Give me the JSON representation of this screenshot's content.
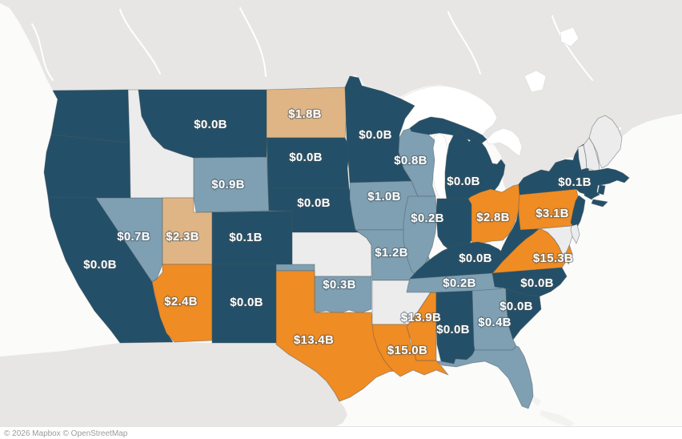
{
  "map": {
    "attribution": "© 2026 Mapbox © OpenStreetMap",
    "colors": {
      "dark": "#235068",
      "medium": "#7fa0b2",
      "tan": "#e0b585",
      "orange": "#ef8c23",
      "no_data": "#ececec",
      "water": "#fbfbfa",
      "foreign_land": "#e7e6e4",
      "lake": "#ffffff",
      "shallow_water": "#f2f2f1",
      "label_text": "#ffffff"
    },
    "states": [
      {
        "id": "WA",
        "category": "dark",
        "value": null
      },
      {
        "id": "OR",
        "category": "dark",
        "value": null
      },
      {
        "id": "CA",
        "category": "dark",
        "value": "$0.0B"
      },
      {
        "id": "NV",
        "category": "medium",
        "value": "$0.7B"
      },
      {
        "id": "ID",
        "category": "no_data",
        "value": null
      },
      {
        "id": "UT",
        "category": "tan",
        "value": "$2.3B"
      },
      {
        "id": "AZ",
        "category": "orange",
        "value": "$2.4B"
      },
      {
        "id": "MT",
        "category": "dark",
        "value": "$0.0B"
      },
      {
        "id": "WY",
        "category": "medium",
        "value": "$0.9B"
      },
      {
        "id": "CO",
        "category": "dark",
        "value": "$0.1B"
      },
      {
        "id": "NM",
        "category": "dark",
        "value": "$0.0B"
      },
      {
        "id": "ND",
        "category": "tan",
        "value": "$1.8B"
      },
      {
        "id": "SD",
        "category": "dark",
        "value": "$0.0B"
      },
      {
        "id": "NE",
        "category": "dark",
        "value": "$0.0B"
      },
      {
        "id": "KS",
        "category": "no_data",
        "value": null
      },
      {
        "id": "OK",
        "category": "medium",
        "value": "$0.3B"
      },
      {
        "id": "TX",
        "category": "orange",
        "value": "$13.4B"
      },
      {
        "id": "MN",
        "category": "dark",
        "value": "$0.0B"
      },
      {
        "id": "IA",
        "category": "medium",
        "value": "$1.0B"
      },
      {
        "id": "MO",
        "category": "medium",
        "value": "$1.2B"
      },
      {
        "id": "AR",
        "category": "no_data",
        "value": null
      },
      {
        "id": "LA",
        "category": "orange",
        "value": "$15.0B"
      },
      {
        "id": "WI",
        "category": "medium",
        "value": "$0.8B"
      },
      {
        "id": "IL",
        "category": "medium",
        "value": "$0.2B"
      },
      {
        "id": "MS",
        "category": "orange",
        "value": "$13.9B"
      },
      {
        "id": "MI",
        "category": "dark",
        "value": "$0.0B"
      },
      {
        "id": "IN",
        "category": "dark",
        "value": null
      },
      {
        "id": "OH",
        "category": "orange",
        "value": "$2.8B"
      },
      {
        "id": "KY",
        "category": "dark",
        "value": "$0.0B"
      },
      {
        "id": "TN",
        "category": "medium",
        "value": "$0.2B"
      },
      {
        "id": "AL",
        "category": "dark",
        "value": "$0.0B"
      },
      {
        "id": "GA",
        "category": "medium",
        "value": "$0.4B"
      },
      {
        "id": "FL",
        "category": "medium",
        "value": null
      },
      {
        "id": "SC",
        "category": "dark",
        "value": "$0.0B"
      },
      {
        "id": "NC",
        "category": "dark",
        "value": "$0.0B"
      },
      {
        "id": "VA",
        "category": "orange",
        "value": "$15.3B"
      },
      {
        "id": "WV",
        "category": "dark",
        "value": null
      },
      {
        "id": "PA",
        "category": "orange",
        "value": "$3.1B"
      },
      {
        "id": "NY",
        "category": "dark",
        "value": "$0.1B"
      },
      {
        "id": "NJ",
        "category": "dark",
        "value": null
      },
      {
        "id": "MD",
        "category": "no_data",
        "value": null
      },
      {
        "id": "DE",
        "category": "no_data",
        "value": null
      },
      {
        "id": "VT",
        "category": "no_data",
        "value": null
      },
      {
        "id": "NH",
        "category": "no_data",
        "value": null
      },
      {
        "id": "ME",
        "category": "no_data",
        "value": null
      },
      {
        "id": "MA",
        "category": "dark",
        "value": null
      },
      {
        "id": "CT",
        "category": "dark",
        "value": null
      },
      {
        "id": "RI",
        "category": "dark",
        "value": null
      }
    ]
  }
}
